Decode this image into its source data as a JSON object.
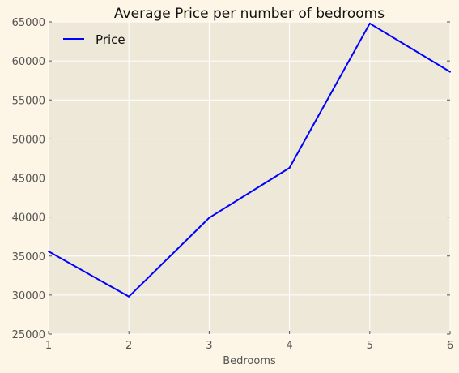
{
  "chart_data": {
    "type": "line",
    "title": "Average Price per number of bedrooms",
    "xlabel": "Bedrooms",
    "ylabel": "",
    "x": [
      1,
      2,
      3,
      4,
      5,
      6
    ],
    "xlim": [
      1,
      6
    ],
    "ylim": [
      25000,
      65000
    ],
    "xticks": [
      "1",
      "2",
      "3",
      "4",
      "5",
      "6"
    ],
    "yticks": [
      "25000",
      "30000",
      "35000",
      "40000",
      "45000",
      "50000",
      "55000",
      "60000",
      "65000"
    ],
    "series": [
      {
        "name": "Price",
        "values": [
          35600,
          29800,
          39900,
          46300,
          64800,
          58600
        ],
        "color": "#0000ff"
      }
    ],
    "grid": true,
    "legend": "top-left",
    "colors": {
      "page": "#fdf5e6",
      "plot_background": "#ede8d8",
      "grid": "#ffffff"
    }
  }
}
